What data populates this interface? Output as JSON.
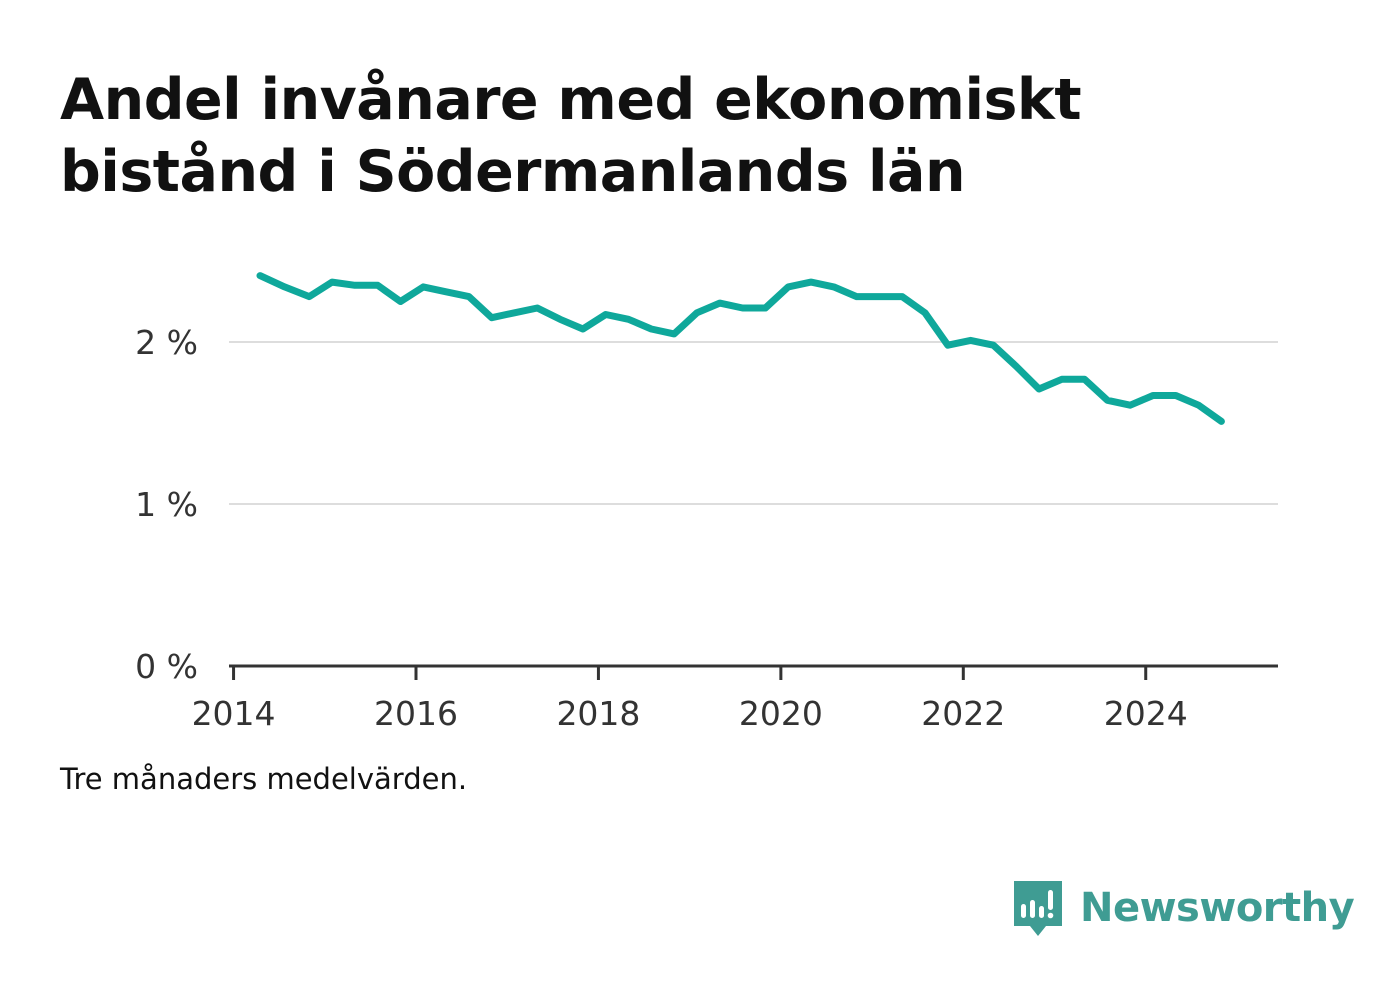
{
  "title": "Andel invånare med ekonomiskt bistånd i Södermanlands län",
  "note": "Tre månaders medelvärden.",
  "brand": {
    "name": "Newsworthy",
    "icon": "newsworthy-logo-icon",
    "color": "#3f9c93"
  },
  "chart_data": {
    "type": "line",
    "title": "Andel invånare med ekonomiskt bistånd i Södermanlands län",
    "xlabel": "",
    "ylabel": "",
    "xlim": [
      2013.95,
      2025.45
    ],
    "ylim": [
      0,
      2.5
    ],
    "x_ticks": [
      2014,
      2016,
      2018,
      2020,
      2022,
      2024
    ],
    "x_tick_labels": [
      "2014",
      "2016",
      "2018",
      "2020",
      "2022",
      "2024"
    ],
    "y_ticks": [
      0,
      1,
      2
    ],
    "y_tick_labels": [
      "0 %",
      "1 %",
      "2 %"
    ],
    "grid": true,
    "line_color": "#0fa89b",
    "series": [
      {
        "x": [
          2014.29,
          2014.56,
          2014.83,
          2015.08,
          2015.33,
          2015.58,
          2015.83,
          2016.08,
          2016.33,
          2016.58,
          2016.83,
          2017.08,
          2017.33,
          2017.58,
          2017.83,
          2018.08,
          2018.33,
          2018.58,
          2018.83,
          2019.08,
          2019.33,
          2019.58,
          2019.83,
          2020.08,
          2020.33,
          2020.58,
          2020.83,
          2021.08,
          2021.33,
          2021.58,
          2021.83,
          2022.08,
          2022.33,
          2022.58,
          2022.83,
          2023.08,
          2023.33,
          2023.58,
          2023.83,
          2024.08,
          2024.33,
          2024.58,
          2024.83
        ],
        "values": [
          2.41,
          2.34,
          2.28,
          2.37,
          2.35,
          2.35,
          2.25,
          2.34,
          2.31,
          2.28,
          2.15,
          2.18,
          2.21,
          2.14,
          2.08,
          2.17,
          2.14,
          2.08,
          2.05,
          2.18,
          2.24,
          2.21,
          2.21,
          2.34,
          2.37,
          2.34,
          2.28,
          2.28,
          2.28,
          2.18,
          1.98,
          2.01,
          1.98,
          1.85,
          1.71,
          1.77,
          1.77,
          1.64,
          1.61,
          1.67,
          1.67,
          1.61,
          1.51
        ]
      }
    ]
  }
}
